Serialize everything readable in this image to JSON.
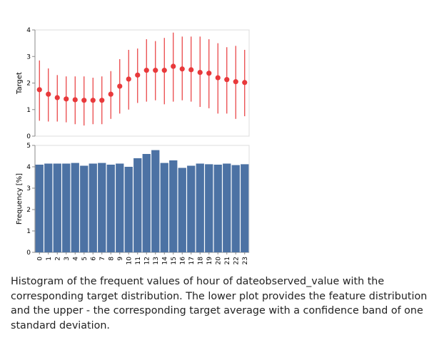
{
  "chart_data": [
    {
      "type": "scatter",
      "subtype": "point-with-error-bars",
      "ylabel": "Target",
      "ylim": [
        0,
        4
      ],
      "yticks": [
        "0",
        "1",
        "2",
        "3",
        "4"
      ],
      "grid": false,
      "color": "#e8393b",
      "x": [
        "0",
        "1",
        "2",
        "3",
        "4",
        "5",
        "6",
        "7",
        "8",
        "9",
        "10",
        "11",
        "12",
        "13",
        "14",
        "15",
        "16",
        "17",
        "18",
        "19",
        "20",
        "21",
        "22",
        "23"
      ],
      "mean": [
        1.75,
        1.58,
        1.45,
        1.4,
        1.37,
        1.35,
        1.35,
        1.35,
        1.58,
        1.88,
        2.15,
        2.3,
        2.48,
        2.48,
        2.48,
        2.63,
        2.53,
        2.5,
        2.4,
        2.37,
        2.2,
        2.13,
        2.05,
        2.02
      ],
      "lower": [
        0.58,
        0.55,
        0.55,
        0.52,
        0.45,
        0.4,
        0.45,
        0.45,
        0.65,
        0.85,
        1.0,
        1.25,
        1.3,
        1.35,
        1.2,
        1.3,
        1.35,
        1.3,
        1.1,
        1.05,
        0.85,
        0.85,
        0.65,
        0.75
      ],
      "upper": [
        2.85,
        2.55,
        2.3,
        2.25,
        2.25,
        2.25,
        2.2,
        2.25,
        2.45,
        2.9,
        3.25,
        3.3,
        3.65,
        3.58,
        3.7,
        3.9,
        3.75,
        3.75,
        3.75,
        3.65,
        3.5,
        3.35,
        3.4,
        3.25
      ]
    },
    {
      "type": "bar",
      "ylabel": "Frequency [%]",
      "ylim": [
        0,
        5
      ],
      "yticks": [
        "0",
        "1",
        "2",
        "3",
        "4",
        "5"
      ],
      "grid": false,
      "color": "#4c72a4",
      "categories": [
        "0",
        "1",
        "2",
        "3",
        "4",
        "5",
        "6",
        "7",
        "8",
        "9",
        "10",
        "11",
        "12",
        "13",
        "14",
        "15",
        "16",
        "17",
        "18",
        "19",
        "20",
        "21",
        "22",
        "23"
      ],
      "values": [
        4.1,
        4.15,
        4.15,
        4.15,
        4.18,
        4.05,
        4.15,
        4.18,
        4.1,
        4.15,
        4.0,
        4.4,
        4.6,
        4.78,
        4.18,
        4.3,
        3.95,
        4.05,
        4.15,
        4.12,
        4.1,
        4.15,
        4.08,
        4.12
      ]
    }
  ],
  "caption": "Histogram of the frequent values of hour of dateobserved_value with the corresponding target distribution. The lower plot provides the feature distribution and the upper - the corresponding target average with a confidence band of one standard deviation."
}
